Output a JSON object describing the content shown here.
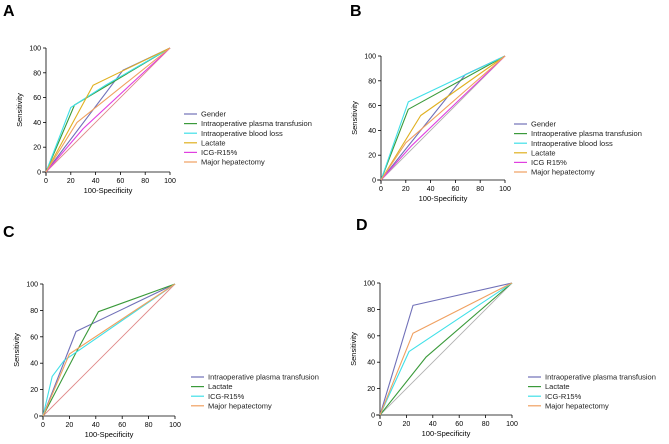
{
  "chart_data": [
    {
      "type": "line",
      "panel": "A",
      "title": "",
      "xlabel": "100-Specificity",
      "ylabel": "Sensitivity",
      "xlim": [
        0,
        100
      ],
      "ylim": [
        0,
        100
      ],
      "xticks": [
        0,
        20,
        40,
        60,
        80,
        100
      ],
      "yticks": [
        0,
        20,
        40,
        60,
        80,
        100
      ],
      "reference_line": {
        "x": [
          0,
          100
        ],
        "y": [
          0,
          100
        ],
        "color": "#e08888"
      },
      "series": [
        {
          "name": "Gender",
          "color": "#7070b8",
          "x": [
            0,
            62,
            100
          ],
          "y": [
            0,
            82,
            100
          ]
        },
        {
          "name": "Intraoperative plasma transfusion",
          "color": "#3a9a3a",
          "x": [
            0,
            23,
            100
          ],
          "y": [
            0,
            54,
            100
          ]
        },
        {
          "name": "Intraoperative blood loss",
          "color": "#40e0e8",
          "x": [
            0,
            20,
            48,
            100
          ],
          "y": [
            0,
            52,
            70,
            100
          ]
        },
        {
          "name": "Lactate",
          "color": "#e0b020",
          "x": [
            0,
            38,
            100
          ],
          "y": [
            0,
            70,
            100
          ]
        },
        {
          "name": "ICG-R15%",
          "color": "#e040e0",
          "x": [
            0,
            30,
            100
          ],
          "y": [
            0,
            35,
            100
          ]
        },
        {
          "name": "Major hepatectomy",
          "color": "#f0a060",
          "x": [
            0,
            25,
            100
          ],
          "y": [
            0,
            40,
            100
          ]
        }
      ]
    },
    {
      "type": "line",
      "panel": "B",
      "title": "",
      "xlabel": "100-Specificity",
      "ylabel": "Sensitivity",
      "xlim": [
        0,
        100
      ],
      "ylim": [
        0,
        100
      ],
      "xticks": [
        0,
        20,
        40,
        60,
        80,
        100
      ],
      "yticks": [
        0,
        20,
        40,
        60,
        80,
        100
      ],
      "reference_line": {
        "x": [
          0,
          100
        ],
        "y": [
          0,
          100
        ],
        "color": "#b0b0b0"
      },
      "series": [
        {
          "name": "Gender",
          "color": "#7070b8",
          "x": [
            0,
            68,
            100
          ],
          "y": [
            0,
            85,
            100
          ]
        },
        {
          "name": "Intraoperative plasma transfusion",
          "color": "#3a9a3a",
          "x": [
            0,
            22,
            100
          ],
          "y": [
            0,
            57,
            100
          ]
        },
        {
          "name": "Intraoperative blood loss",
          "color": "#40e0e8",
          "x": [
            0,
            22,
            100
          ],
          "y": [
            0,
            63,
            100
          ]
        },
        {
          "name": "Lactate",
          "color": "#e0b020",
          "x": [
            0,
            32,
            100
          ],
          "y": [
            0,
            52,
            100
          ]
        },
        {
          "name": "ICG R15%",
          "color": "#e040e0",
          "x": [
            0,
            25,
            100
          ],
          "y": [
            0,
            28,
            100
          ]
        },
        {
          "name": "Major hepatectomy",
          "color": "#f0a060",
          "x": [
            0,
            20,
            100
          ],
          "y": [
            0,
            30,
            100
          ]
        }
      ]
    },
    {
      "type": "line",
      "panel": "C",
      "title": "",
      "xlabel": "100-Specificity",
      "ylabel": "Sensitivity",
      "xlim": [
        0,
        100
      ],
      "ylim": [
        0,
        100
      ],
      "xticks": [
        0,
        20,
        40,
        60,
        80,
        100
      ],
      "yticks": [
        0,
        20,
        40,
        60,
        80,
        100
      ],
      "reference_line": {
        "x": [
          0,
          100
        ],
        "y": [
          0,
          100
        ],
        "color": "#e08888"
      },
      "series": [
        {
          "name": "Intraoperative plasma transfusion",
          "color": "#7070b8",
          "x": [
            0,
            25,
            100
          ],
          "y": [
            0,
            64,
            100
          ]
        },
        {
          "name": "Lactate",
          "color": "#3a9a3a",
          "x": [
            0,
            25,
            42,
            100
          ],
          "y": [
            0,
            48,
            79,
            100
          ]
        },
        {
          "name": "ICG-R15%",
          "color": "#40e0e8",
          "x": [
            0,
            7,
            16,
            100
          ],
          "y": [
            0,
            30,
            42,
            100
          ]
        },
        {
          "name": "Major hepatectomy",
          "color": "#f0a060",
          "x": [
            0,
            20,
            100
          ],
          "y": [
            0,
            47,
            100
          ]
        }
      ]
    },
    {
      "type": "line",
      "panel": "D",
      "title": "",
      "xlabel": "100-Specificity",
      "ylabel": "Sensitivity",
      "xlim": [
        0,
        100
      ],
      "ylim": [
        0,
        100
      ],
      "xticks": [
        0,
        20,
        40,
        60,
        80,
        100
      ],
      "yticks": [
        0,
        20,
        40,
        60,
        80,
        100
      ],
      "reference_line": {
        "x": [
          0,
          100
        ],
        "y": [
          0,
          100
        ],
        "color": "#b0b0b0"
      },
      "series": [
        {
          "name": "Intraoperative plasma transfusion",
          "color": "#7070b8",
          "x": [
            0,
            25,
            100
          ],
          "y": [
            0,
            83,
            100
          ]
        },
        {
          "name": "Lactate",
          "color": "#3a9a3a",
          "x": [
            0,
            35,
            100
          ],
          "y": [
            0,
            44,
            100
          ]
        },
        {
          "name": "ICG-R15%",
          "color": "#40e0e8",
          "x": [
            0,
            22,
            100
          ],
          "y": [
            0,
            48,
            100
          ]
        },
        {
          "name": "Major hepatectomy",
          "color": "#f0a060",
          "x": [
            0,
            25,
            100
          ],
          "y": [
            0,
            62,
            100
          ]
        }
      ]
    }
  ]
}
